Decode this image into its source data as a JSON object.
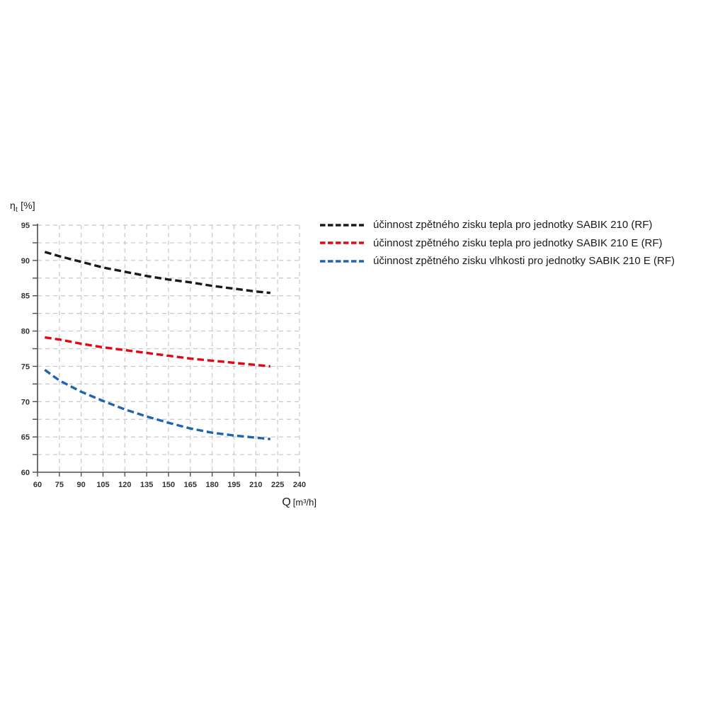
{
  "page": {
    "background_color": "#ffffff"
  },
  "chart_data": {
    "type": "line",
    "title": "",
    "xlabel": "Q [m³/h]",
    "ylabel": "ηt [%]",
    "xlabel_parts": {
      "q": "Q",
      "unit": "[m³/h]"
    },
    "ylabel_parts": {
      "sym": "η",
      "sub": "t",
      "rest": " [%]"
    },
    "xlim": [
      60,
      240
    ],
    "ylim": [
      60,
      95
    ],
    "x_ticks": [
      60,
      75,
      90,
      105,
      120,
      135,
      150,
      165,
      180,
      195,
      210,
      225,
      240
    ],
    "y_ticks": [
      60,
      65,
      70,
      75,
      80,
      85,
      90,
      95
    ],
    "y_minor_step": 2.5,
    "grid": "dashed",
    "legend_position": "right",
    "x": [
      65,
      75,
      90,
      105,
      120,
      135,
      150,
      165,
      180,
      195,
      210,
      220
    ],
    "series": [
      {
        "name": "účinnost zpětného zisku tepla pro jednotky SABIK 210 (RF)",
        "color": "#1a1a1a",
        "values": [
          91.2,
          90.6,
          89.8,
          89.0,
          88.4,
          87.8,
          87.3,
          86.9,
          86.4,
          86.0,
          85.6,
          85.4
        ]
      },
      {
        "name": "účinnost zpětného zisku tepla pro jednotky SABIK 210 E (RF)",
        "color": "#e30613",
        "values": [
          79.1,
          78.8,
          78.2,
          77.7,
          77.3,
          76.9,
          76.5,
          76.1,
          75.8,
          75.5,
          75.2,
          75.0
        ]
      },
      {
        "name": "účinnost zpětného zisku vlhkosti pro jednotky SABIK 210 E (RF)",
        "color": "#1e64ae",
        "values": [
          74.5,
          73.0,
          71.4,
          70.1,
          68.9,
          67.9,
          67.0,
          66.2,
          65.6,
          65.2,
          64.9,
          64.7
        ]
      }
    ],
    "style": {
      "grid_color": "#c8c8c8",
      "axis_color": "#4d4d4d",
      "tick_label_color": "#333333"
    }
  }
}
